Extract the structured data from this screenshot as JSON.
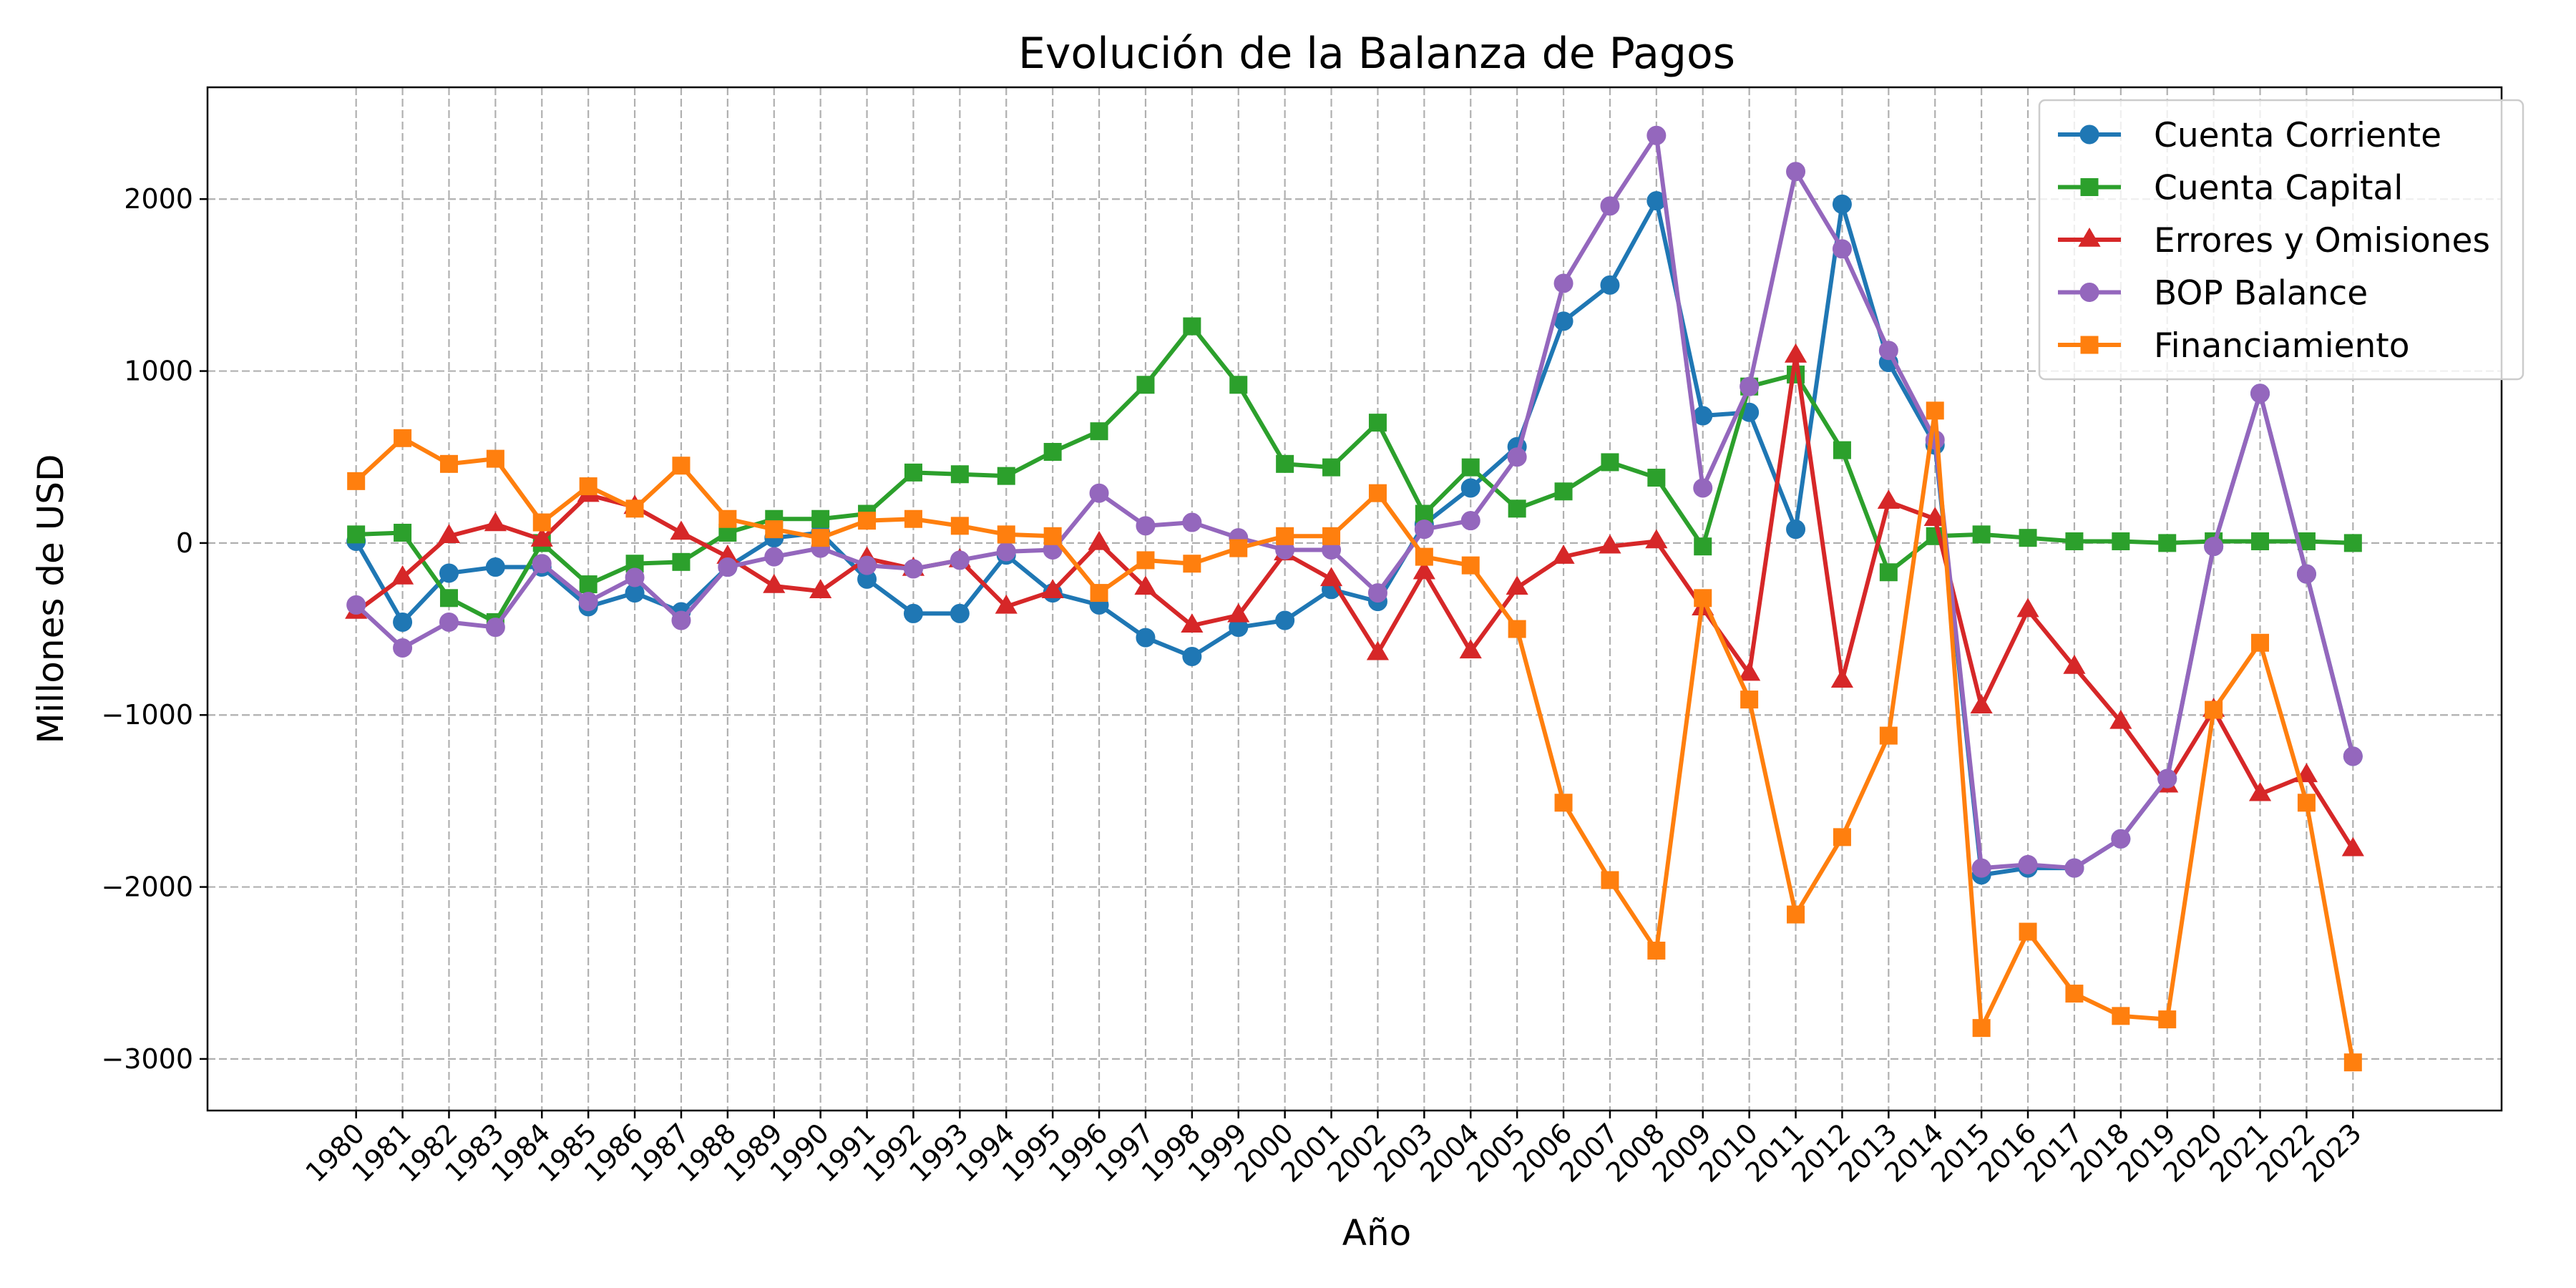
{
  "chart_data": {
    "type": "line",
    "title": "Evolución de la Balanza de Pagos",
    "xlabel": "Año",
    "ylabel": "Millones de USD",
    "x": [
      1980,
      1981,
      1982,
      1983,
      1984,
      1985,
      1986,
      1987,
      1988,
      1989,
      1990,
      1991,
      1992,
      1993,
      1994,
      1995,
      1996,
      1997,
      1998,
      1999,
      2000,
      2001,
      2002,
      2003,
      2004,
      2005,
      2006,
      2007,
      2008,
      2009,
      2010,
      2011,
      2012,
      2013,
      2014,
      2015,
      2016,
      2017,
      2018,
      2019,
      2020,
      2021,
      2022,
      2023
    ],
    "xlim": [
      1976.8,
      2026.2
    ],
    "ylim": [
      -3300,
      2650
    ],
    "yticks": [
      2000,
      1000,
      0,
      -1000,
      -2000,
      -3000
    ],
    "ytick_labels": [
      "2000",
      "1000",
      "0",
      "−1000",
      "−2000",
      "−3000"
    ],
    "grid": true,
    "legend_position": "top-right",
    "series": [
      {
        "name": "Cuenta Corriente",
        "color": "#1f77b4",
        "marker": "circle",
        "values": [
          10,
          -460,
          -175,
          -140,
          -140,
          -370,
          -290,
          -400,
          -140,
          30,
          60,
          -210,
          -410,
          -410,
          -70,
          -290,
          -360,
          -550,
          -660,
          -490,
          -450,
          -270,
          -340,
          110,
          320,
          560,
          1290,
          1500,
          1990,
          740,
          760,
          80,
          1970,
          1050,
          570,
          -1930,
          -1890,
          -1890,
          -1720,
          -1370,
          -20,
          870,
          -180,
          -1240
        ]
      },
      {
        "name": "Cuenta Capital",
        "color": "#2ca02c",
        "marker": "square",
        "values": [
          50,
          60,
          -320,
          -460,
          0,
          -240,
          -120,
          -110,
          60,
          140,
          140,
          170,
          410,
          400,
          390,
          530,
          650,
          920,
          1260,
          920,
          460,
          440,
          700,
          170,
          440,
          200,
          300,
          470,
          380,
          -20,
          910,
          980,
          540,
          -170,
          40,
          50,
          30,
          10,
          10,
          0,
          10,
          10,
          10,
          0
        ]
      },
      {
        "name": "Errores y Omisiones",
        "color": "#d62728",
        "marker": "triangle",
        "values": [
          -400,
          -200,
          40,
          110,
          20,
          280,
          210,
          60,
          -80,
          -250,
          -280,
          -90,
          -150,
          -100,
          -370,
          -280,
          0,
          -260,
          -480,
          -420,
          -60,
          -210,
          -640,
          -170,
          -630,
          -260,
          -80,
          -20,
          10,
          -380,
          -760,
          1090,
          -800,
          240,
          140,
          -950,
          -390,
          -720,
          -1040,
          -1410,
          -970,
          -1460,
          -1350,
          -1780
        ]
      },
      {
        "name": "BOP Balance",
        "color": "#9467bd",
        "marker": "circle",
        "values": [
          -360,
          -610,
          -460,
          -490,
          -120,
          -340,
          -200,
          -450,
          -140,
          -80,
          -30,
          -130,
          -150,
          -100,
          -50,
          -40,
          290,
          100,
          120,
          30,
          -40,
          -40,
          -290,
          80,
          130,
          500,
          1510,
          1960,
          2370,
          320,
          910,
          2160,
          1710,
          1120,
          600,
          -1890,
          -1870,
          -1890,
          -1720,
          -1370,
          -20,
          870,
          -180,
          -1240
        ]
      },
      {
        "name": "Financiamiento",
        "color": "#ff7f0e",
        "marker": "square",
        "values": [
          360,
          610,
          460,
          490,
          120,
          330,
          200,
          450,
          140,
          80,
          30,
          130,
          140,
          100,
          50,
          40,
          -290,
          -100,
          -120,
          -30,
          40,
          40,
          290,
          -80,
          -130,
          -500,
          -1510,
          -1960,
          -2370,
          -320,
          -910,
          -2160,
          -1710,
          -1120,
          770,
          -2820,
          -2260,
          -2620,
          -2750,
          -2770,
          -970,
          -580,
          -1510,
          -3020
        ]
      }
    ]
  }
}
